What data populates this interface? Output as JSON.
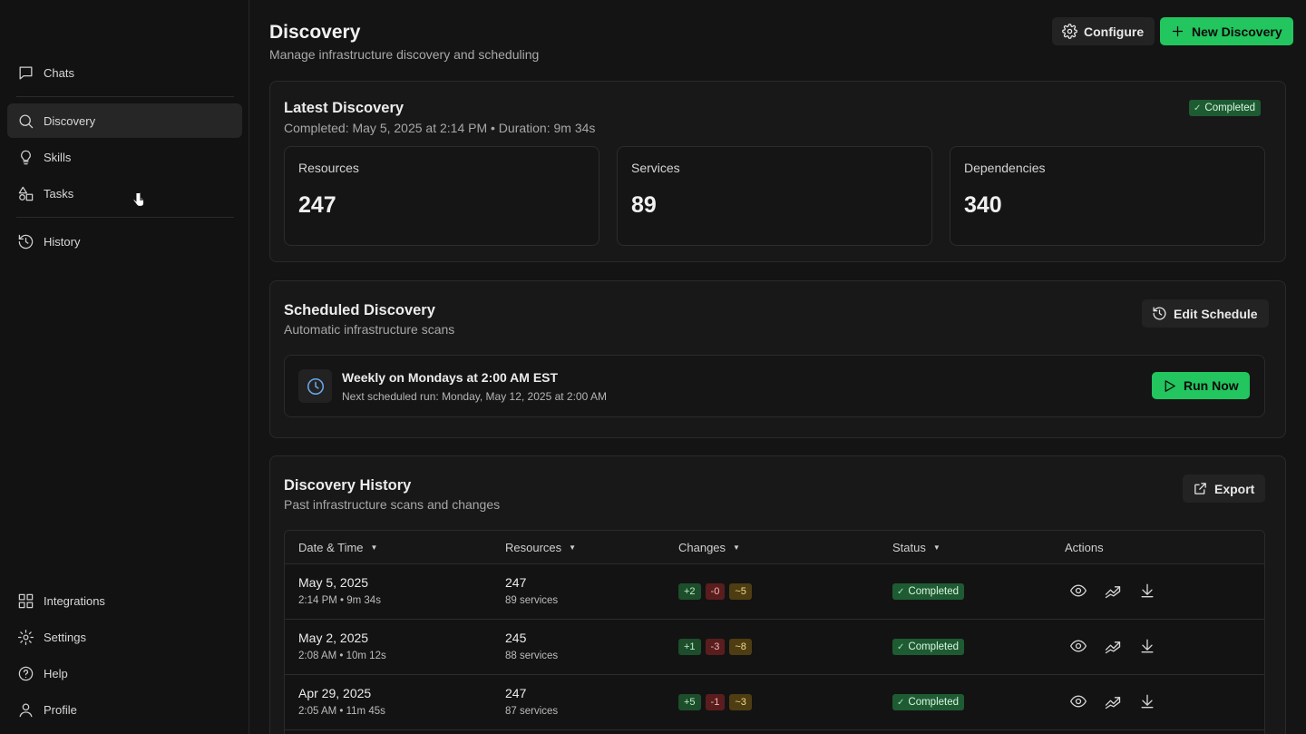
{
  "sidebar": {
    "items": [
      {
        "label": "Chats",
        "icon": "chat-icon"
      },
      {
        "label": "Discovery",
        "icon": "search-icon"
      },
      {
        "label": "Skills",
        "icon": "lightbulb-icon"
      },
      {
        "label": "Tasks",
        "icon": "shapes-icon"
      },
      {
        "label": "History",
        "icon": "history-icon"
      }
    ],
    "bottom_items": [
      {
        "label": "Integrations",
        "icon": "integrations-icon"
      },
      {
        "label": "Settings",
        "icon": "gear-icon"
      },
      {
        "label": "Help",
        "icon": "help-icon"
      },
      {
        "label": "Profile",
        "icon": "user-icon"
      }
    ]
  },
  "header": {
    "title": "Discovery",
    "subtitle": "Manage infrastructure discovery and scheduling",
    "configure_label": "Configure",
    "new_discovery_label": "New Discovery"
  },
  "latest": {
    "title": "Latest Discovery",
    "subtitle": "Completed: May 5, 2025 at 2:14 PM • Duration: 9m 34s",
    "status": "Completed",
    "stats": [
      {
        "label": "Resources",
        "value": "247"
      },
      {
        "label": "Services",
        "value": "89"
      },
      {
        "label": "Dependencies",
        "value": "340"
      }
    ]
  },
  "scheduled": {
    "title": "Scheduled Discovery",
    "subtitle": "Automatic infrastructure scans",
    "edit_label": "Edit Schedule",
    "schedule_text": "Weekly on Mondays at 2:00 AM EST",
    "next_run": "Next scheduled run: Monday, May 12, 2025 at 2:00 AM",
    "run_now_label": "Run Now"
  },
  "history": {
    "title": "Discovery History",
    "subtitle": "Past infrastructure scans and changes",
    "export_label": "Export",
    "columns": [
      "Date & Time",
      "Resources",
      "Changes",
      "Status",
      "Actions"
    ],
    "rows": [
      {
        "date": "May 5, 2025",
        "time": "2:14 PM • 9m 34s",
        "resources": "247",
        "services": "89 services",
        "added": "+2",
        "removed": "-0",
        "modified": "~5",
        "status": "Completed"
      },
      {
        "date": "May 2, 2025",
        "time": "2:08 AM • 10m 12s",
        "resources": "245",
        "services": "88 services",
        "added": "+1",
        "removed": "-3",
        "modified": "~8",
        "status": "Completed"
      },
      {
        "date": "Apr 29, 2025",
        "time": "2:05 AM • 11m 45s",
        "resources": "247",
        "services": "87 services",
        "added": "+5",
        "removed": "-1",
        "modified": "~3",
        "status": "Completed"
      }
    ]
  },
  "colors": {
    "accent": "#22c55e",
    "background": "#141414",
    "card": "#181818",
    "clock": "#6aa6e8"
  }
}
